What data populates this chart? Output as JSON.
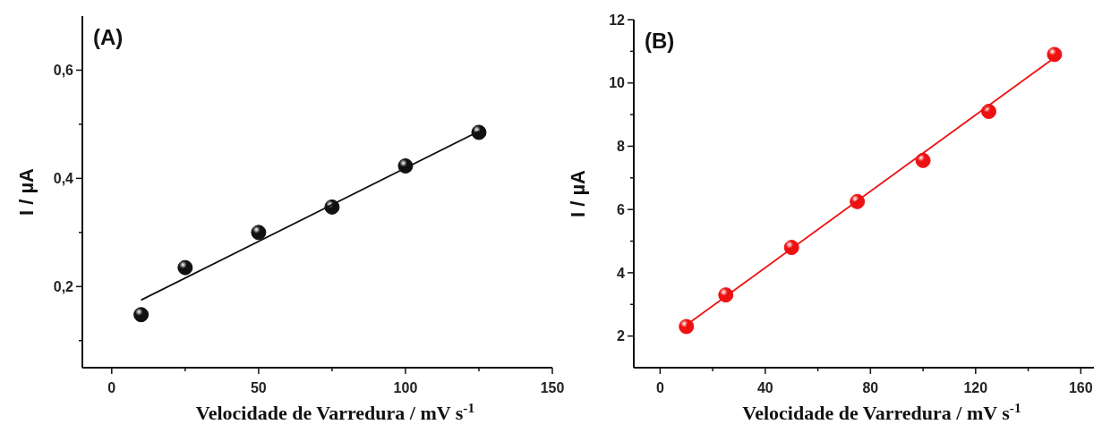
{
  "chart_data": [
    {
      "type": "scatter",
      "title": "(A)",
      "xlabel": "Velocidade de Varredura  / mV s$^{-1}$",
      "ylabel": "I / µA",
      "xlim": [
        -10,
        150
      ],
      "xticks": [
        0,
        {
          "value": 25,
          "label": null
        },
        50,
        {
          "value": 75,
          "label": null
        },
        100,
        {
          "value": 125,
          "label": null
        },
        150
      ],
      "ylim": [
        0.05,
        0.7
      ],
      "yticks": [
        {
          "value": 0.1,
          "label": null
        },
        {
          "value": 0.2,
          "label": "0,2"
        },
        {
          "value": 0.3,
          "label": null
        },
        {
          "value": 0.4,
          "label": "0,4"
        },
        {
          "value": 0.5,
          "label": null
        },
        {
          "value": 0.6,
          "label": "0,6"
        }
      ],
      "marker": "circle",
      "series": [
        {
          "color": "#111111",
          "x": [
            10,
            25,
            50,
            75,
            100,
            125
          ],
          "values": [
            0.148,
            0.235,
            0.3,
            0.347,
            0.423,
            0.485
          ]
        },
        {
          "type": "line",
          "marker": "none",
          "color": "#111111",
          "x": [
            10,
            125
          ],
          "values": [
            0.175,
            0.487
          ]
        }
      ]
    },
    {
      "type": "scatter",
      "title": "(B)",
      "xlabel": "Velocidade de Varredura  / mV s$^{-1}$",
      "ylabel": "I / µA",
      "xlim": [
        -10,
        165
      ],
      "xticks": [
        0,
        {
          "value": 20,
          "label": null
        },
        40,
        {
          "value": 60,
          "label": null
        },
        80,
        {
          "value": 100,
          "label": null
        },
        120,
        {
          "value": 140,
          "label": null
        },
        160
      ],
      "ylim": [
        1,
        12
      ],
      "yticks": [
        2,
        {
          "value": 3,
          "label": null
        },
        4,
        {
          "value": 5,
          "label": null
        },
        6,
        {
          "value": 7,
          "label": null
        },
        8,
        {
          "value": 9,
          "label": null
        },
        10,
        {
          "value": 11,
          "label": null
        },
        12
      ],
      "marker": "circle",
      "series": [
        {
          "color": "#ee1111",
          "x": [
            10,
            25,
            50,
            75,
            100,
            125,
            150
          ],
          "values": [
            2.3,
            3.3,
            4.8,
            6.25,
            7.55,
            9.1,
            10.9
          ]
        },
        {
          "type": "line",
          "marker": "none",
          "color": "#ee1111",
          "x": [
            10,
            150
          ],
          "values": [
            2.35,
            10.8
          ]
        }
      ]
    }
  ]
}
